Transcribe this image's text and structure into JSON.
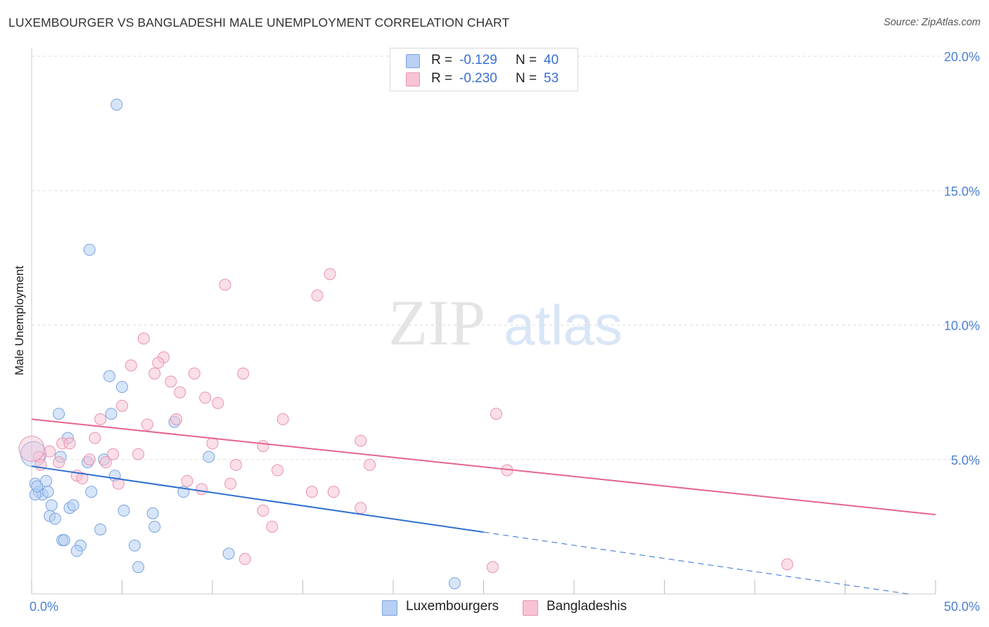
{
  "title": "LUXEMBOURGER VS BANGLADESHI MALE UNEMPLOYMENT CORRELATION CHART",
  "source": "Source: ZipAtlas.com",
  "watermark": {
    "zip": "ZIP",
    "atlas": "atlas"
  },
  "colors": {
    "blue_fill": "#b7d0f3",
    "blue_stroke": "#7aa3e0",
    "blue_line": "#2e6fd1",
    "pink_fill": "#f6c4d4",
    "pink_stroke": "#e992b0",
    "pink_line": "#e4648f",
    "tick_text": "#4a7fd4",
    "grid": "#dddddd"
  },
  "legend": {
    "rows": [
      {
        "r_label": "R =",
        "r_value": "-0.129",
        "n_label": "N =",
        "n_value": "40"
      },
      {
        "r_label": "R =",
        "r_value": "-0.230",
        "n_label": "N =",
        "n_value": "53"
      }
    ]
  },
  "chart_data": {
    "type": "scatter",
    "title": "LUXEMBOURGER VS BANGLADESHI MALE UNEMPLOYMENT CORRELATION CHART",
    "xlabel": "",
    "ylabel": "Male Unemployment",
    "xlim": [
      0,
      50
    ],
    "ylim": [
      0,
      20
    ],
    "x_tick_labels": [
      {
        "value": 0,
        "label": "0.0%"
      },
      {
        "value": 50,
        "label": "50.0%"
      }
    ],
    "y_tick_labels": [
      {
        "value": 5,
        "label": "5.0%"
      },
      {
        "value": 10,
        "label": "10.0%"
      },
      {
        "value": 15,
        "label": "15.0%"
      },
      {
        "value": 20,
        "label": "20.0%"
      }
    ],
    "grid": true,
    "legend_position": "top-center",
    "series": [
      {
        "name": "Luxembourgers",
        "color": "blue",
        "trend": {
          "x0": 0,
          "y0": 4.75,
          "x1": 25,
          "y1": 2.3,
          "dashed_to_x": 48.5,
          "dashed_to_y": 0
        },
        "points": [
          [
            4.7,
            18.2
          ],
          [
            3.2,
            12.8
          ],
          [
            4.3,
            8.1
          ],
          [
            5.0,
            7.7
          ],
          [
            1.5,
            6.7
          ],
          [
            4.4,
            6.7
          ],
          [
            7.9,
            6.4
          ],
          [
            2.0,
            5.8
          ],
          [
            1.6,
            5.1
          ],
          [
            3.1,
            4.9
          ],
          [
            4.0,
            5.0
          ],
          [
            9.8,
            5.1
          ],
          [
            0.2,
            4.1
          ],
          [
            0.8,
            4.2
          ],
          [
            4.6,
            4.4
          ],
          [
            0.4,
            3.8
          ],
          [
            0.6,
            3.7
          ],
          [
            0.9,
            3.8
          ],
          [
            3.3,
            3.8
          ],
          [
            8.4,
            3.8
          ],
          [
            0.2,
            3.7
          ],
          [
            1.1,
            3.3
          ],
          [
            2.1,
            3.2
          ],
          [
            2.3,
            3.3
          ],
          [
            5.1,
            3.1
          ],
          [
            6.7,
            3.0
          ],
          [
            1.0,
            2.9
          ],
          [
            1.3,
            2.8
          ],
          [
            3.8,
            2.4
          ],
          [
            6.8,
            2.5
          ],
          [
            1.7,
            2.0
          ],
          [
            1.8,
            2.0
          ],
          [
            2.7,
            1.8
          ],
          [
            5.7,
            1.8
          ],
          [
            2.5,
            1.6
          ],
          [
            10.9,
            1.5
          ],
          [
            5.9,
            1.0
          ],
          [
            23.4,
            0.4
          ],
          [
            0.1,
            5.2
          ],
          [
            0.3,
            4.0
          ]
        ]
      },
      {
        "name": "Bangladeshis",
        "color": "pink",
        "trend": {
          "x0": 0,
          "y0": 6.5,
          "x1": 50,
          "y1": 2.95
        },
        "points": [
          [
            16.5,
            11.9
          ],
          [
            10.7,
            11.5
          ],
          [
            15.8,
            11.1
          ],
          [
            6.2,
            9.5
          ],
          [
            7.3,
            8.8
          ],
          [
            5.5,
            8.5
          ],
          [
            7.0,
            8.6
          ],
          [
            6.8,
            8.2
          ],
          [
            9.0,
            8.2
          ],
          [
            11.7,
            8.2
          ],
          [
            7.7,
            7.9
          ],
          [
            8.2,
            7.5
          ],
          [
            9.6,
            7.3
          ],
          [
            10.3,
            7.1
          ],
          [
            5.0,
            7.0
          ],
          [
            25.7,
            6.7
          ],
          [
            3.8,
            6.5
          ],
          [
            13.9,
            6.5
          ],
          [
            8.0,
            6.5
          ],
          [
            6.4,
            6.3
          ],
          [
            3.5,
            5.8
          ],
          [
            1.7,
            5.6
          ],
          [
            2.1,
            5.6
          ],
          [
            10.0,
            5.6
          ],
          [
            18.2,
            5.7
          ],
          [
            12.8,
            5.5
          ],
          [
            1.0,
            5.3
          ],
          [
            4.5,
            5.2
          ],
          [
            5.9,
            5.2
          ],
          [
            0.4,
            5.1
          ],
          [
            3.2,
            5.0
          ],
          [
            4.1,
            4.9
          ],
          [
            1.5,
            4.9
          ],
          [
            0.5,
            4.8
          ],
          [
            11.3,
            4.8
          ],
          [
            18.7,
            4.8
          ],
          [
            13.6,
            4.6
          ],
          [
            26.3,
            4.6
          ],
          [
            2.5,
            4.4
          ],
          [
            2.8,
            4.3
          ],
          [
            8.6,
            4.2
          ],
          [
            4.8,
            4.1
          ],
          [
            11.0,
            4.1
          ],
          [
            9.4,
            3.9
          ],
          [
            15.5,
            3.8
          ],
          [
            16.7,
            3.8
          ],
          [
            12.8,
            3.1
          ],
          [
            18.2,
            3.2
          ],
          [
            13.3,
            2.5
          ],
          [
            11.8,
            1.3
          ],
          [
            25.5,
            1.0
          ],
          [
            41.8,
            1.1
          ],
          [
            0.0,
            5.4
          ]
        ]
      }
    ]
  }
}
